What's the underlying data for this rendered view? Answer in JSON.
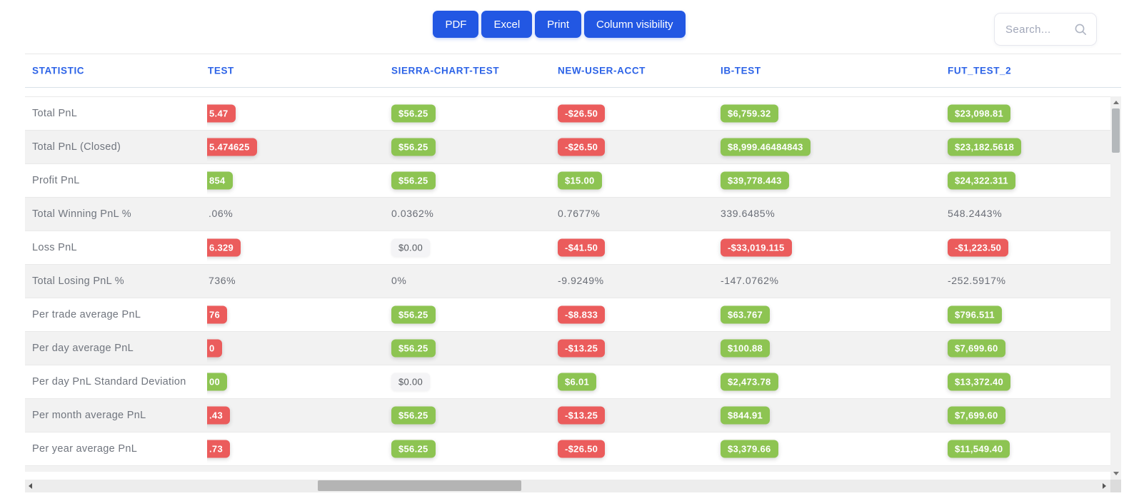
{
  "toolbar": {
    "buttons": [
      {
        "id": "pdf",
        "label": "PDF"
      },
      {
        "id": "excel",
        "label": "Excel"
      },
      {
        "id": "print",
        "label": "Print"
      },
      {
        "id": "column-visibility",
        "label": "Column visibility"
      }
    ],
    "search_placeholder": "Search..."
  },
  "colors": {
    "accent_blue": "#2257e3",
    "header_text_blue": "#2c63e7",
    "badge_green": "#8dc452",
    "badge_red": "#eb5c5c",
    "row_alt_gray": "#f2f2f2"
  },
  "table": {
    "columns": [
      "STATISTIC",
      "TEST",
      "SIERRA-CHART-TEST",
      "NEW-USER-ACCT",
      "IB-TEST",
      "FUT_TEST_2"
    ],
    "rows": [
      {
        "label": "Total PnL",
        "cells": [
          {
            "v": "5.47",
            "t": "neg",
            "cut": true
          },
          {
            "v": "$56.25",
            "t": "pos"
          },
          {
            "v": "-$26.50",
            "t": "neg"
          },
          {
            "v": "$6,759.32",
            "t": "pos"
          },
          {
            "v": "$23,098.81",
            "t": "pos"
          }
        ]
      },
      {
        "label": "Total PnL (Closed)",
        "cells": [
          {
            "v": "5.474625",
            "t": "neg",
            "cut": true
          },
          {
            "v": "$56.25",
            "t": "pos"
          },
          {
            "v": "-$26.50",
            "t": "neg"
          },
          {
            "v": "$8,999.46484843",
            "t": "pos"
          },
          {
            "v": "$23,182.5618",
            "t": "pos"
          }
        ]
      },
      {
        "label": "Profit PnL",
        "cells": [
          {
            "v": "854",
            "t": "pos",
            "cut": true
          },
          {
            "v": "$56.25",
            "t": "pos"
          },
          {
            "v": "$15.00",
            "t": "pos"
          },
          {
            "v": "$39,778.443",
            "t": "pos"
          },
          {
            "v": "$24,322.311",
            "t": "pos"
          }
        ]
      },
      {
        "label": "Total Winning PnL %",
        "cells": [
          {
            "v": ".06%",
            "t": "plain",
            "cut": true
          },
          {
            "v": "0.0362%",
            "t": "plain"
          },
          {
            "v": "0.7677%",
            "t": "plain"
          },
          {
            "v": "339.6485%",
            "t": "plain"
          },
          {
            "v": "548.2443%",
            "t": "plain"
          }
        ]
      },
      {
        "label": "Loss PnL",
        "cells": [
          {
            "v": "6.329",
            "t": "neg",
            "cut": true
          },
          {
            "v": "$0.00",
            "t": "zero"
          },
          {
            "v": "-$41.50",
            "t": "neg"
          },
          {
            "v": "-$33,019.115",
            "t": "neg"
          },
          {
            "v": "-$1,223.50",
            "t": "neg"
          }
        ]
      },
      {
        "label": "Total Losing PnL %",
        "cells": [
          {
            "v": "736%",
            "t": "plain",
            "cut": true
          },
          {
            "v": "0%",
            "t": "plain"
          },
          {
            "v": "-9.9249%",
            "t": "plain"
          },
          {
            "v": "-147.0762%",
            "t": "plain"
          },
          {
            "v": "-252.5917%",
            "t": "plain"
          }
        ]
      },
      {
        "label": "Per trade average PnL",
        "cells": [
          {
            "v": "76",
            "t": "neg",
            "cut": true
          },
          {
            "v": "$56.25",
            "t": "pos"
          },
          {
            "v": "-$8.833",
            "t": "neg"
          },
          {
            "v": "$63.767",
            "t": "pos"
          },
          {
            "v": "$796.511",
            "t": "pos"
          }
        ]
      },
      {
        "label": "Per day average PnL",
        "cells": [
          {
            "v": "0",
            "t": "neg",
            "cut": true
          },
          {
            "v": "$56.25",
            "t": "pos"
          },
          {
            "v": "-$13.25",
            "t": "neg"
          },
          {
            "v": "$100.88",
            "t": "pos"
          },
          {
            "v": "$7,699.60",
            "t": "pos"
          }
        ]
      },
      {
        "label": "Per day PnL Standard Deviation",
        "cells": [
          {
            "v": "00",
            "t": "pos",
            "cut": true
          },
          {
            "v": "$0.00",
            "t": "zero"
          },
          {
            "v": "$6.01",
            "t": "pos"
          },
          {
            "v": "$2,473.78",
            "t": "pos"
          },
          {
            "v": "$13,372.40",
            "t": "pos"
          }
        ]
      },
      {
        "label": "Per month average PnL",
        "cells": [
          {
            "v": ".43",
            "t": "neg",
            "cut": true
          },
          {
            "v": "$56.25",
            "t": "pos"
          },
          {
            "v": "-$13.25",
            "t": "neg"
          },
          {
            "v": "$844.91",
            "t": "pos"
          },
          {
            "v": "$7,699.60",
            "t": "pos"
          }
        ]
      },
      {
        "label": "Per year average PnL",
        "cells": [
          {
            "v": ".73",
            "t": "neg",
            "cut": true
          },
          {
            "v": "$56.25",
            "t": "pos"
          },
          {
            "v": "-$26.50",
            "t": "neg"
          },
          {
            "v": "$3,379.66",
            "t": "pos"
          },
          {
            "v": "$11,549.40",
            "t": "pos"
          }
        ]
      }
    ]
  }
}
